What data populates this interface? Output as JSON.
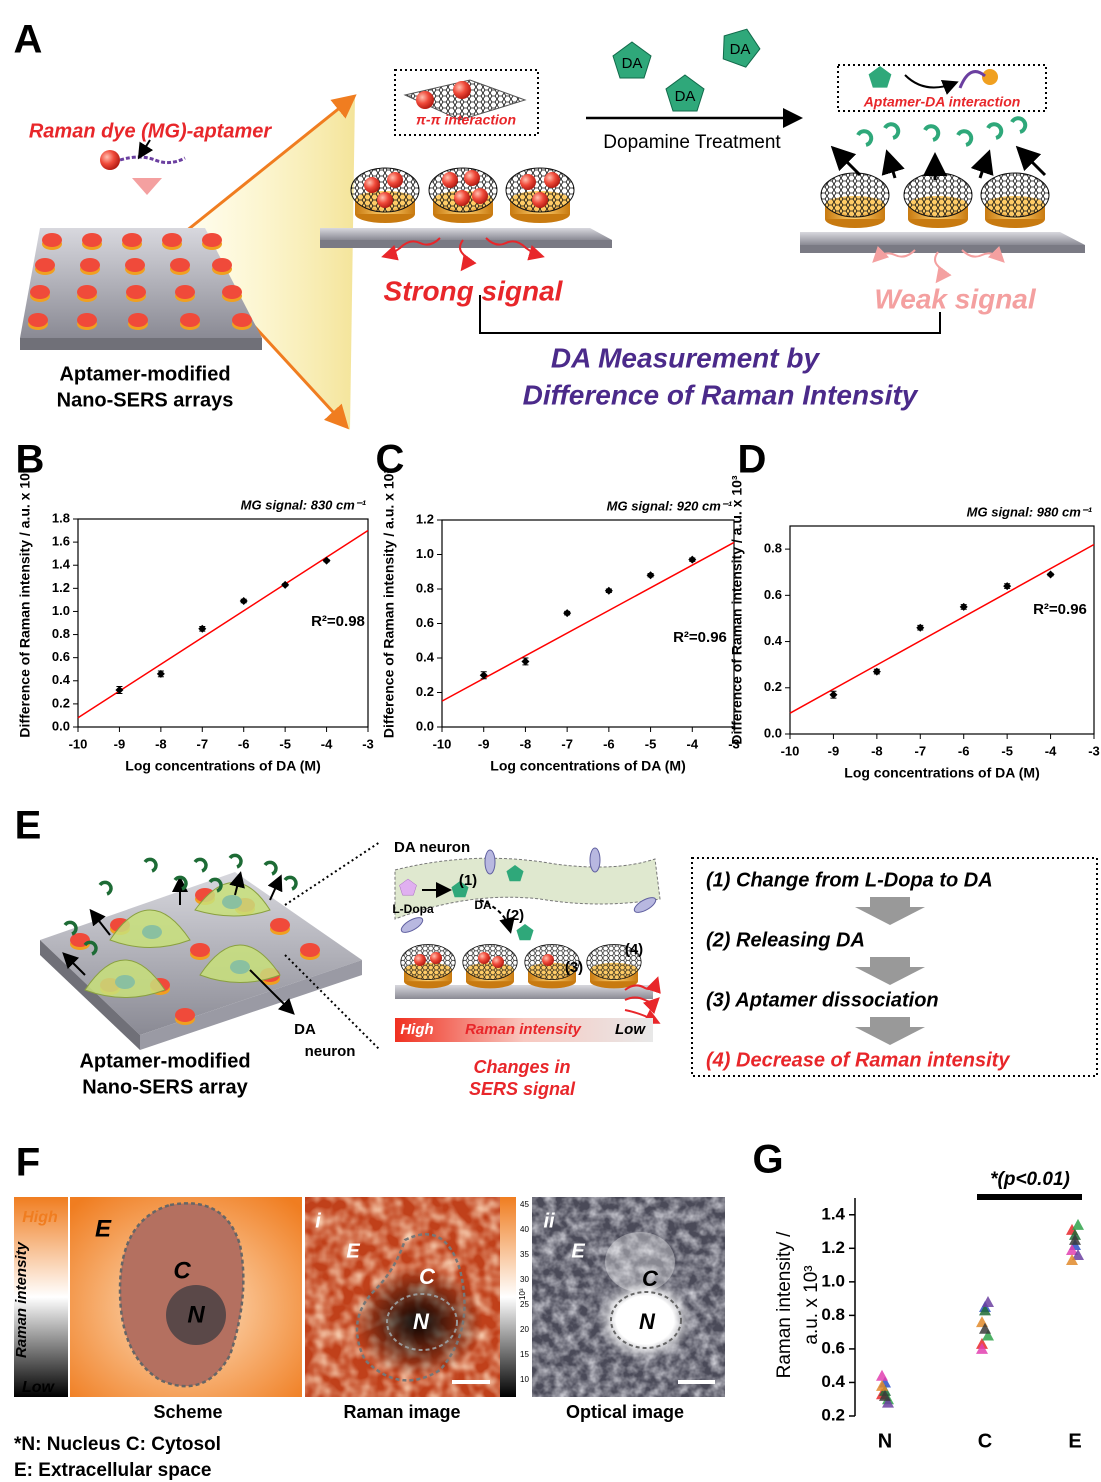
{
  "panel_labels": [
    "A",
    "B",
    "C",
    "D",
    "E",
    "F",
    "G"
  ],
  "panel_a": {
    "probe_label": "Raman dye (MG)-aptamer",
    "array_label": [
      "Aptamer-modified",
      "Nano-SERS arrays"
    ],
    "box_label": "π-π interaction",
    "molecule_labels": [
      "DA",
      "DA",
      "DA"
    ],
    "treatment": "Dopamine Treatment",
    "interaction_label": "Aptamer-DA interaction",
    "strong": "Strong signal",
    "weak": "Weak signal",
    "measurement": [
      "DA Measurement by",
      "Difference of Raman Intensity"
    ]
  },
  "chart_data": [
    {
      "type": "scatter",
      "title": "MG signal: 830 cm⁻¹",
      "x_label": "Log concentrations of DA (M)",
      "y_label": "Difference of Raman intensity / a.u. x 10³",
      "annotation": "R²=0.98",
      "x": [
        -9,
        -8,
        -7,
        -6,
        -5,
        -4
      ],
      "values": [
        0.32,
        0.46,
        0.85,
        1.09,
        1.23,
        1.44
      ],
      "errors": [
        0.03,
        0.025,
        0.02,
        0.015,
        0.01,
        0.01
      ],
      "color": "#000000",
      "fit_line": {
        "x": [
          -10,
          -3
        ],
        "values": [
          0.08,
          1.7
        ],
        "color": "#ff0000"
      },
      "xlim": [
        -10,
        -3
      ],
      "xticks": [
        -10,
        -9,
        -8,
        -7,
        -6,
        -5,
        -4,
        -3
      ],
      "ylim": [
        0,
        1.8
      ],
      "yticks": [
        {
          "value": 0,
          "label": "0.0"
        },
        0.2,
        0.4,
        0.6,
        0.8,
        {
          "value": 1,
          "label": "1.0"
        },
        1.2,
        1.4,
        1.6,
        1.8
      ]
    },
    {
      "type": "scatter",
      "title": "MG signal: 920 cm⁻¹",
      "x_label": "Log concentrations of DA (M)",
      "y_label": "Difference of Raman intensity / a.u. x 10³",
      "annotation": "R²=0.96",
      "x": [
        -9,
        -8,
        -7,
        -6,
        -5,
        -4
      ],
      "values": [
        0.3,
        0.38,
        0.66,
        0.79,
        0.88,
        0.97
      ],
      "errors": [
        0.02,
        0.02,
        0.01,
        0.01,
        0.01,
        0.01
      ],
      "color": "#000000",
      "fit_line": {
        "x": [
          -10,
          -3
        ],
        "values": [
          0.15,
          1.07
        ],
        "color": "#ff0000"
      },
      "xlim": [
        -10,
        -3
      ],
      "xticks": [
        -10,
        -9,
        -8,
        -7,
        -6,
        -5,
        -4,
        -3
      ],
      "ylim": [
        0,
        1.2
      ],
      "yticks": [
        {
          "value": 0,
          "label": "0.0"
        },
        0.2,
        0.4,
        0.6,
        0.8,
        {
          "value": 1,
          "label": "1.0"
        },
        1.2
      ]
    },
    {
      "type": "scatter",
      "title": "MG signal: 980 cm⁻¹",
      "x_label": "Log concentrations of DA (M)",
      "y_label": "Difference of Raman intensity / a.u. x 10³",
      "annotation": "R²=0.96",
      "x": [
        -9,
        -8,
        -7,
        -6,
        -5,
        -4
      ],
      "values": [
        0.17,
        0.27,
        0.46,
        0.55,
        0.64,
        0.69
      ],
      "errors": [
        0.015,
        0.01,
        0.01,
        0.01,
        0.01,
        0.005
      ],
      "color": "#000000",
      "fit_line": {
        "x": [
          -10,
          -3
        ],
        "values": [
          0.09,
          0.82
        ],
        "color": "#ff0000"
      },
      "xlim": [
        -10,
        -3
      ],
      "xticks": [
        -10,
        -9,
        -8,
        -7,
        -6,
        -5,
        -4,
        -3
      ],
      "ylim": [
        0,
        0.9
      ],
      "yticks": [
        {
          "value": 0,
          "label": "0.0"
        },
        0.2,
        0.4,
        0.6,
        0.8
      ]
    },
    {
      "type": "strip",
      "annotation": "*(p<0.01)",
      "y_label": [
        "Raman intensity /",
        "a.u. x 10³"
      ],
      "categories": [
        "N",
        "C",
        "E"
      ],
      "series": [
        {
          "color": "#e8262a",
          "values": [
            0.33,
            0.63,
            1.31
          ]
        },
        {
          "color": "#2b4fc8",
          "values": [
            0.4,
            0.85,
            1.22
          ]
        },
        {
          "color": "#2fa24a",
          "values": [
            0.3,
            0.68,
            1.34
          ]
        },
        {
          "color": "#e23fb0",
          "values": [
            0.44,
            0.6,
            1.19
          ]
        },
        {
          "color": "#1d6b35",
          "values": [
            0.35,
            0.83,
            1.28
          ]
        },
        {
          "color": "#6b3fa0",
          "values": [
            0.28,
            0.88,
            1.16
          ]
        },
        {
          "color": "#e08a2a",
          "values": [
            0.38,
            0.76,
            1.13
          ]
        },
        {
          "color": "#3a3a3a",
          "values": [
            0.32,
            0.72,
            1.25
          ]
        }
      ],
      "ylim": [
        0.2,
        1.5
      ],
      "yticks": [
        0.2,
        0.4,
        0.6,
        0.8,
        {
          "value": 1,
          "label": "1.0"
        },
        1.2,
        1.4
      ]
    }
  ],
  "panel_e": {
    "array_label": [
      "Aptamer-modified",
      "Nano-SERS array"
    ],
    "neuron_label": [
      "DA",
      "neuron"
    ],
    "inset_title": "DA neuron",
    "inset_labels": [
      "(1)",
      "L-Dopa",
      "DA",
      "(2)",
      "(3)",
      "(4)"
    ],
    "bar_labels": [
      "High",
      "Raman intensity",
      "Low"
    ],
    "caption": [
      "Changes in",
      "SERS signal"
    ],
    "steps": [
      "(1) Change from L-Dopa to DA",
      "(2) Releasing DA",
      "(3) Aptamer dissociation",
      "(4) Decrease of Raman intensity"
    ]
  },
  "panel_f": {
    "scale": [
      "High",
      "Raman intensity",
      "Low"
    ],
    "scheme_labels": [
      "E",
      "C",
      "N"
    ],
    "raman_labels": [
      "i",
      "E",
      "C",
      "N"
    ],
    "optical_labels": [
      "ii",
      "E",
      "C",
      "N"
    ],
    "captions": [
      "Scheme",
      "Raman image",
      "Optical image"
    ],
    "colorbar_ticks": [
      45,
      40,
      35,
      30,
      25,
      20,
      15,
      10
    ],
    "colorbar_unit": "10³",
    "footnote": [
      "*N: Nucleus C: Cytosol",
      "E: Extracellular space"
    ]
  }
}
